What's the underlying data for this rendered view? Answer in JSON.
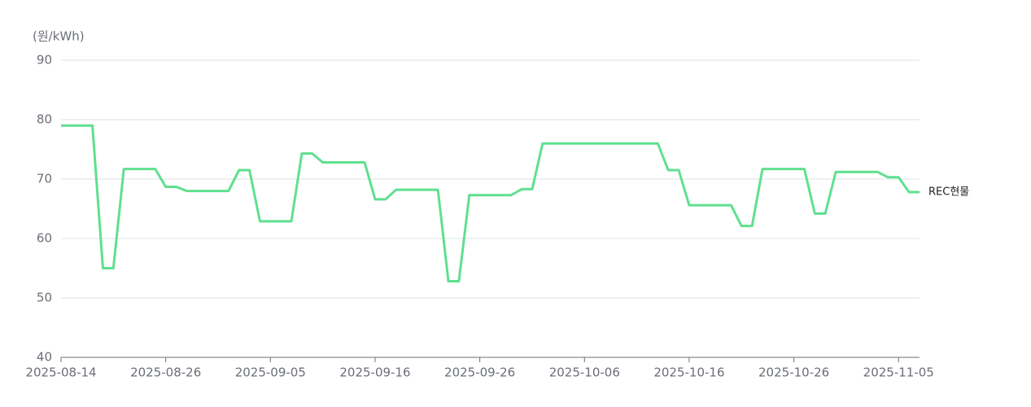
{
  "chart_data": {
    "type": "line",
    "y_label": "(원/kWh)",
    "categories": [
      "2025-08-14",
      null,
      null,
      null,
      null,
      null,
      null,
      null,
      null,
      null,
      "2025-08-26",
      null,
      null,
      null,
      null,
      null,
      null,
      null,
      null,
      null,
      "2025-09-05",
      null,
      null,
      null,
      null,
      null,
      null,
      null,
      null,
      null,
      "2025-09-16",
      null,
      null,
      null,
      null,
      null,
      null,
      null,
      null,
      null,
      "2025-09-26",
      null,
      null,
      null,
      null,
      null,
      null,
      null,
      null,
      null,
      "2025-10-06",
      null,
      null,
      null,
      null,
      null,
      null,
      null,
      null,
      null,
      "2025-10-16",
      null,
      null,
      null,
      null,
      null,
      null,
      null,
      null,
      null,
      "2025-10-26",
      null,
      null,
      null,
      null,
      null,
      null,
      null,
      null,
      null,
      "2025-11-05",
      null,
      null
    ],
    "series": [
      {
        "name": "REC현물",
        "color": "#5fe08f",
        "values": [
          79,
          79,
          79,
          79,
          55,
          55,
          71.7,
          71.7,
          71.7,
          71.7,
          68.7,
          68.7,
          68,
          68,
          68,
          68,
          68,
          71.5,
          71.5,
          62.9,
          62.9,
          62.9,
          62.9,
          74.3,
          74.3,
          72.8,
          72.8,
          72.8,
          72.8,
          72.8,
          66.6,
          66.6,
          68.2,
          68.2,
          68.2,
          68.2,
          68.2,
          52.8,
          52.8,
          67.3,
          67.3,
          67.3,
          67.3,
          67.3,
          68.3,
          68.3,
          76,
          76,
          76,
          76,
          76,
          76,
          76,
          76,
          76,
          76,
          76,
          76,
          71.5,
          71.5,
          65.6,
          65.6,
          65.6,
          65.6,
          65.6,
          62.1,
          62.1,
          71.7,
          71.7,
          71.7,
          71.7,
          71.7,
          64.2,
          64.2,
          71.2,
          71.2,
          71.2,
          71.2,
          71.2,
          70.3,
          70.3,
          67.8,
          67.8
        ]
      }
    ],
    "ylim": [
      40,
      90
    ],
    "yticks": [
      40,
      50,
      60,
      70,
      80,
      90
    ],
    "grid": true
  }
}
